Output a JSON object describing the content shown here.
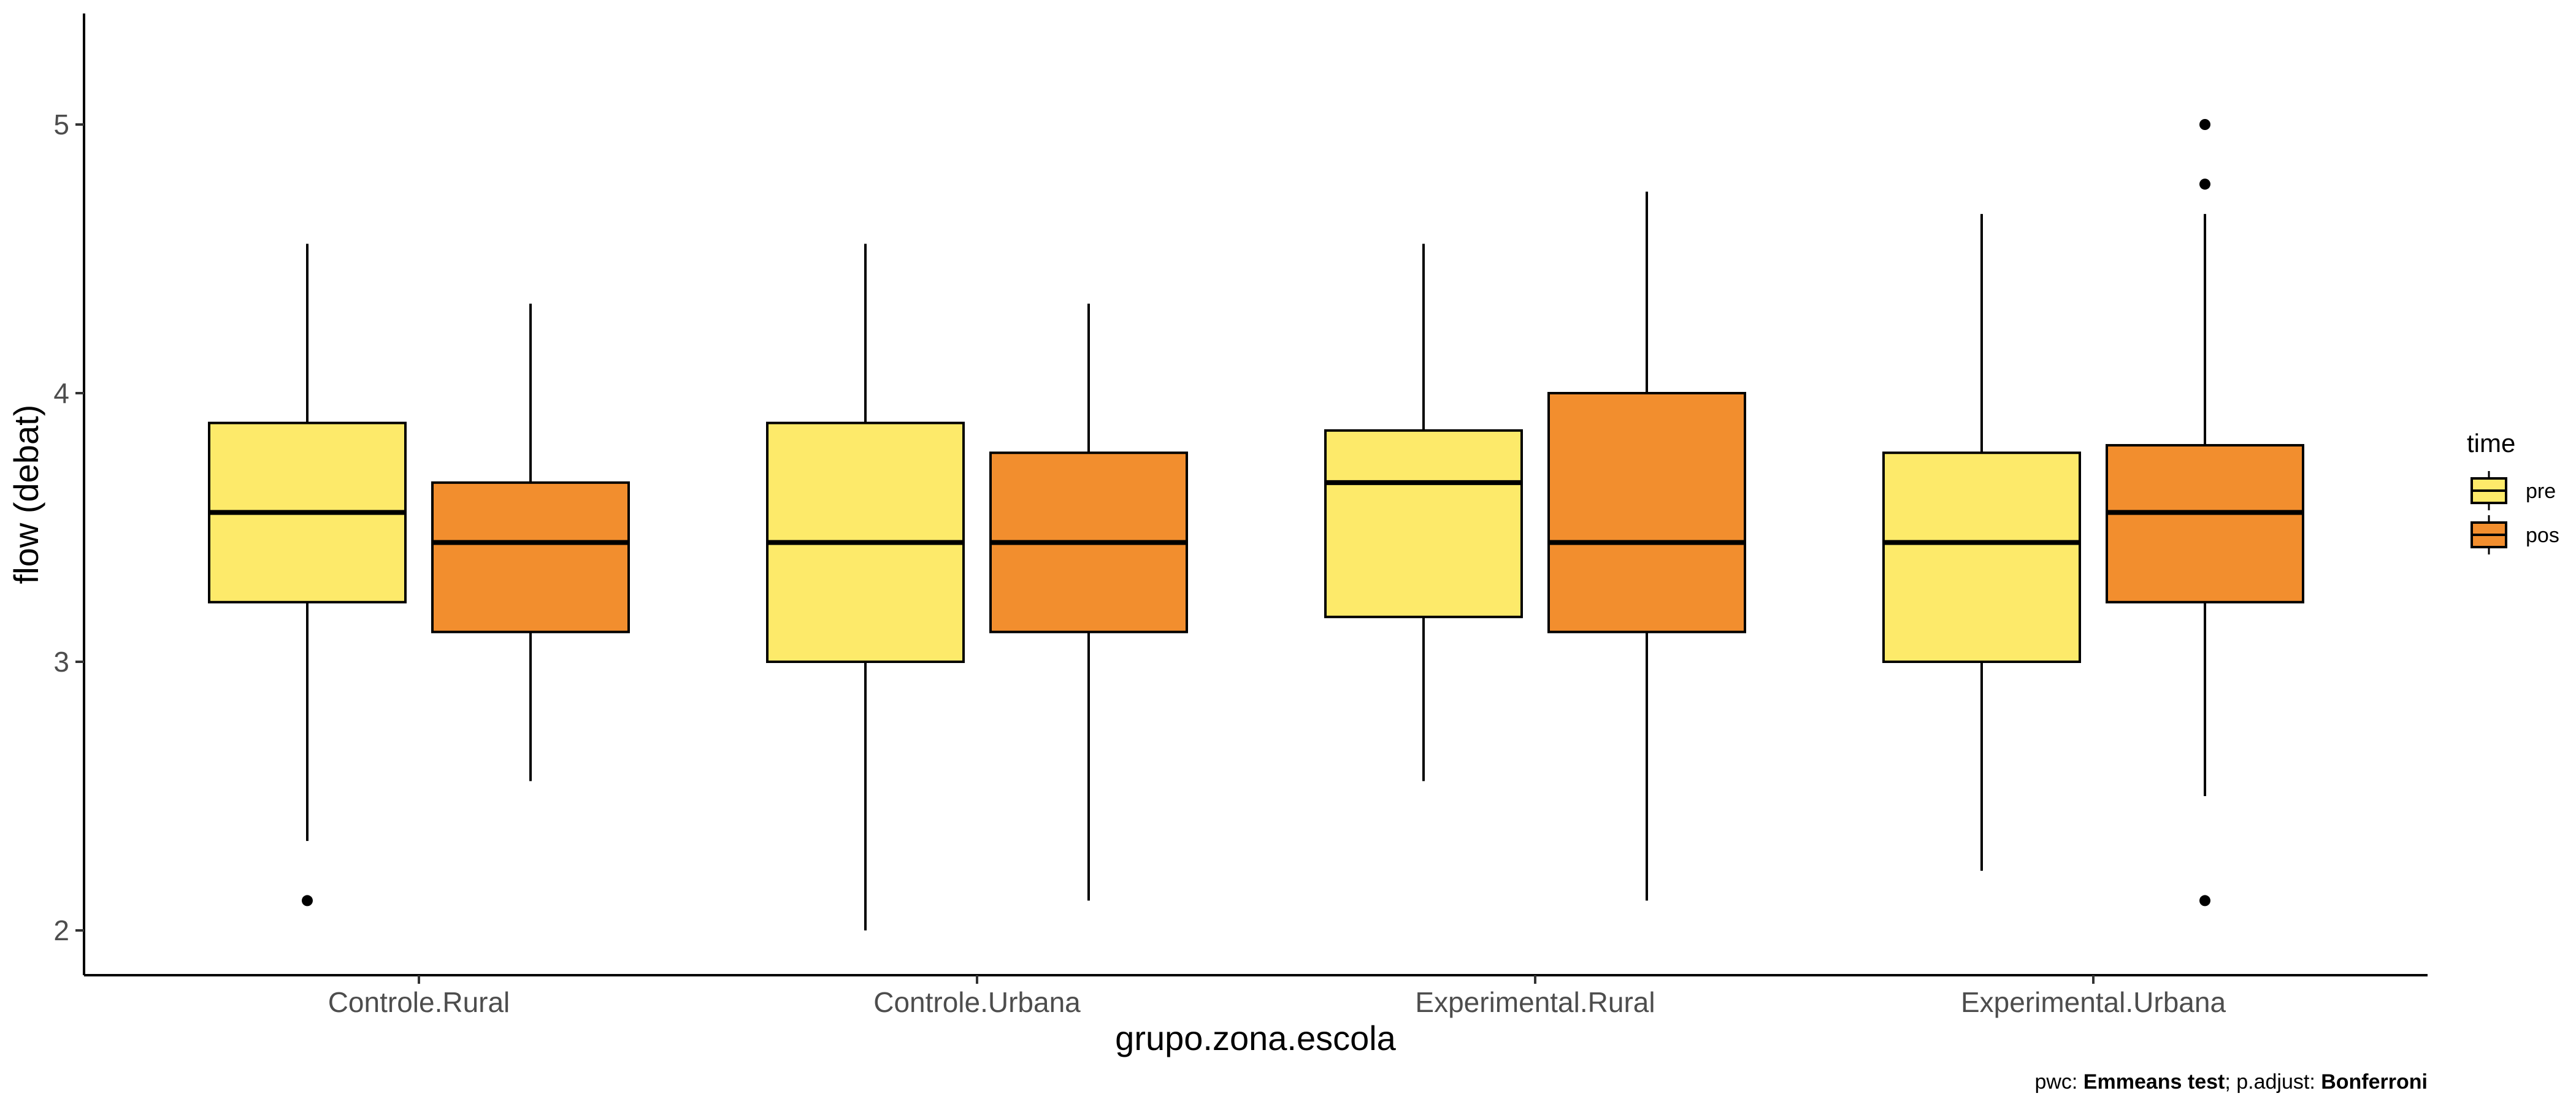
{
  "chart_data": {
    "type": "boxplot",
    "xlabel": "grupo.zona.escola",
    "ylabel": "flow (debat)",
    "ylim": [
      1.85,
      5.4
    ],
    "yticks": [
      2,
      3,
      4,
      5
    ],
    "ytick_labels": [
      "2",
      "3",
      "4",
      "5"
    ],
    "categories": [
      "Controle.Rural",
      "Controle.Urbana",
      "Experimental.Rural",
      "Experimental.Urbana"
    ],
    "grid": false,
    "legend": {
      "title": "time",
      "position": "right",
      "entries": [
        {
          "name": "pre",
          "color": "#FDEA6A"
        },
        {
          "name": "pos",
          "color": "#F28E2E"
        }
      ]
    },
    "series": [
      {
        "name": "pre",
        "color": "#FDEA6A",
        "boxes": [
          {
            "category": "Controle.Rural",
            "whisker_low": 2.333,
            "q1": 3.222,
            "median": 3.556,
            "q3": 3.889,
            "whisker_high": 4.556,
            "outliers": [
              2.111
            ]
          },
          {
            "category": "Controle.Urbana",
            "whisker_low": 2.0,
            "q1": 3.0,
            "median": 3.444,
            "q3": 3.889,
            "whisker_high": 4.556,
            "outliers": []
          },
          {
            "category": "Experimental.Rural",
            "whisker_low": 2.556,
            "q1": 3.167,
            "median": 3.667,
            "q3": 3.861,
            "whisker_high": 4.556,
            "outliers": []
          },
          {
            "category": "Experimental.Urbana",
            "whisker_low": 2.222,
            "q1": 3.0,
            "median": 3.444,
            "q3": 3.778,
            "whisker_high": 4.667,
            "outliers": []
          }
        ]
      },
      {
        "name": "pos",
        "color": "#F28E2E",
        "boxes": [
          {
            "category": "Controle.Rural",
            "whisker_low": 2.556,
            "q1": 3.111,
            "median": 3.444,
            "q3": 3.667,
            "whisker_high": 4.333,
            "outliers": []
          },
          {
            "category": "Controle.Urbana",
            "whisker_low": 2.111,
            "q1": 3.111,
            "median": 3.444,
            "q3": 3.778,
            "whisker_high": 4.333,
            "outliers": []
          },
          {
            "category": "Experimental.Rural",
            "whisker_low": 2.111,
            "q1": 3.111,
            "median": 3.444,
            "q3": 4.0,
            "whisker_high": 4.75,
            "outliers": []
          },
          {
            "category": "Experimental.Urbana",
            "whisker_low": 2.5,
            "q1": 3.222,
            "median": 3.556,
            "q3": 3.806,
            "whisker_high": 4.667,
            "outliers": [
              5.0,
              4.778,
              2.111
            ]
          }
        ]
      }
    ],
    "caption": {
      "pwc_prefix": "pwc: ",
      "pwc_value": "Emmeans test",
      "adjust_prefix": "; p.adjust: ",
      "adjust_value": "Bonferroni"
    }
  }
}
